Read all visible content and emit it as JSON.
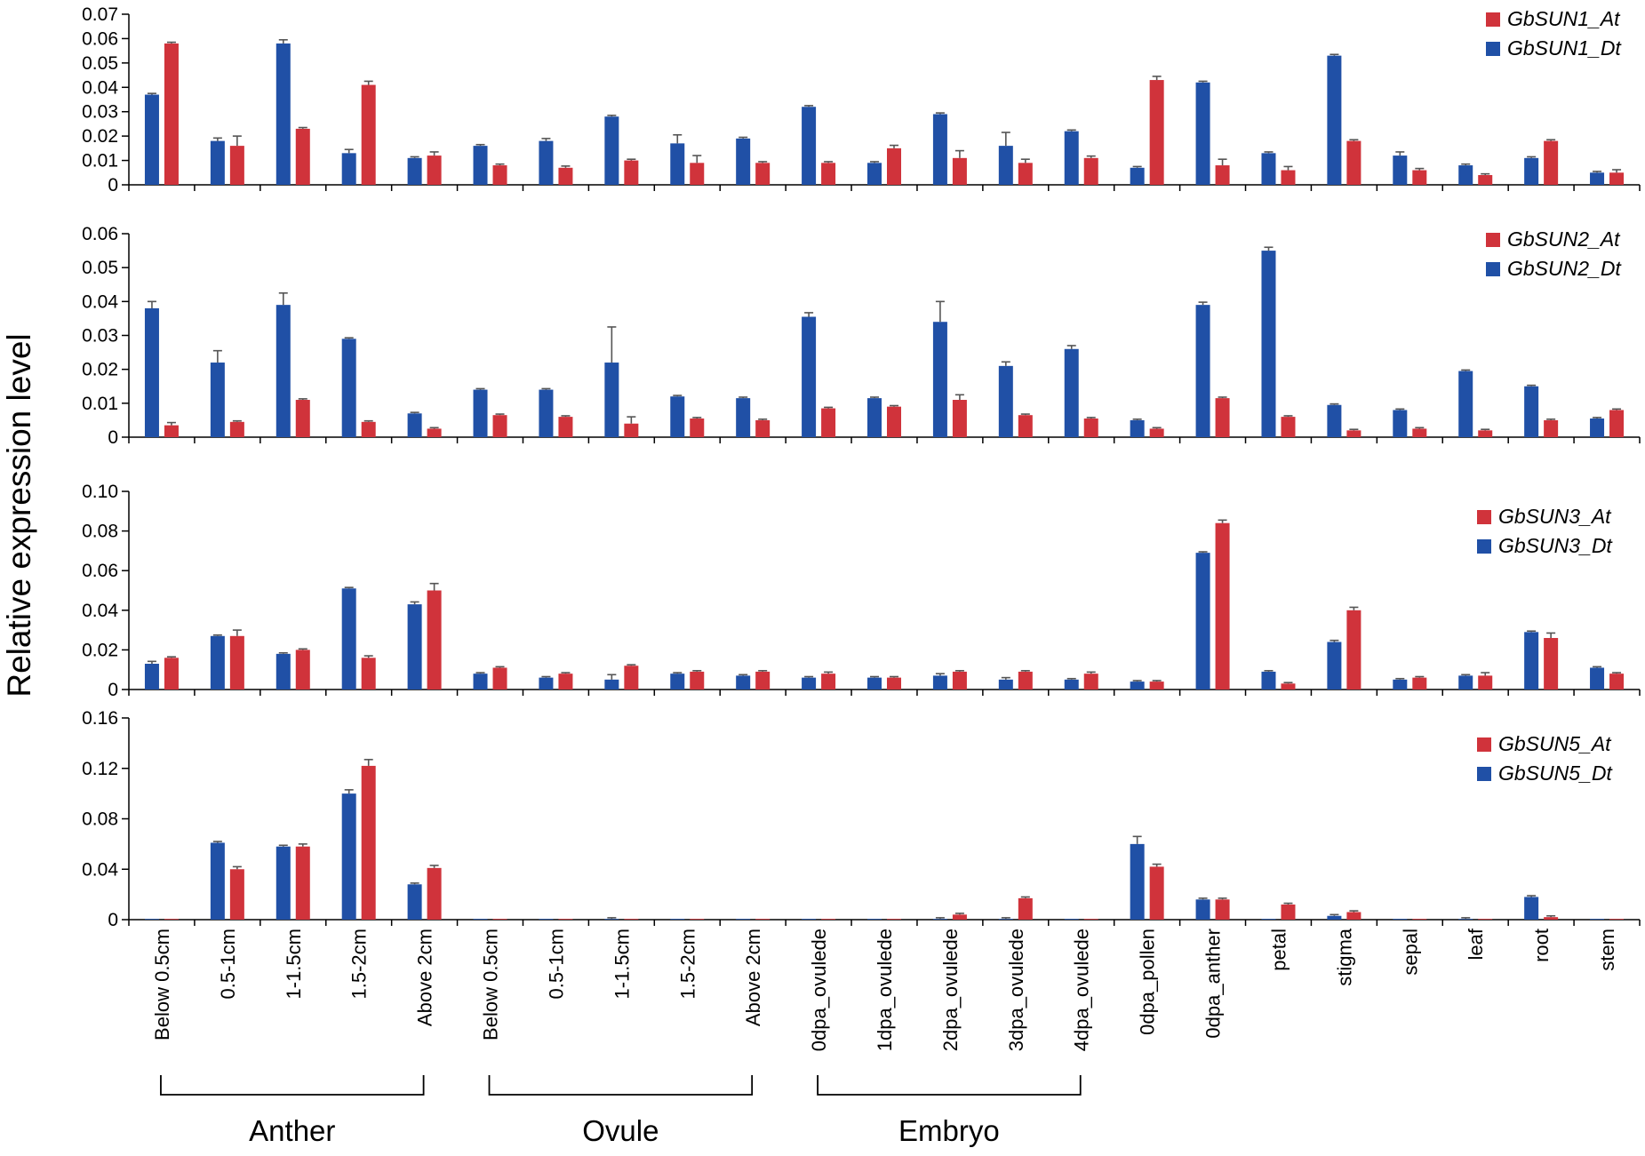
{
  "y_axis_title": "Relative expression level",
  "chart_data": {
    "type": "bar",
    "categories": [
      "Below 0.5cm",
      "0.5-1cm",
      "1-1.5cm",
      "1.5-2cm",
      "Above 2cm",
      "Below 0.5cm",
      "0.5-1cm",
      "1-1.5cm",
      "1.5-2cm",
      "Above 2cm",
      "0dpa_ovulede",
      "1dpa_ovulede",
      "2dpa_ovulede",
      "3dpa_ovulede",
      "4dpa_ovulede",
      "0dpa_pollen",
      "0dpa_anther",
      "petal",
      "stigma",
      "sepal",
      "leaf",
      "root",
      "stem"
    ],
    "groups": [
      {
        "label": "Anther",
        "first": 0,
        "last": 4
      },
      {
        "label": "Ovule",
        "first": 5,
        "last": 9
      },
      {
        "label": "Embryo",
        "first": 10,
        "last": 14
      }
    ],
    "colors": {
      "Dt": "#2050a6",
      "At": "#d0333b",
      "error": "#555555"
    },
    "panels": [
      {
        "ylim": [
          0,
          0.07
        ],
        "yticks": [
          "0",
          "0.01",
          "0.02",
          "0.03",
          "0.04",
          "0.05",
          "0.06",
          "0.07"
        ],
        "series": [
          {
            "name": "GbSUN1_At",
            "key": "At",
            "values": [
              0.058,
              0.016,
              0.023,
              0.041,
              0.012,
              0.008,
              0.007,
              0.01,
              0.009,
              0.009,
              0.009,
              0.015,
              0.011,
              0.009,
              0.011,
              0.043,
              0.008,
              0.006,
              0.018,
              0.006,
              0.004,
              0.018,
              0.005
            ],
            "errors": [
              0.0005,
              0.004,
              0.0005,
              0.0015,
              0.0015,
              0.0005,
              0.0007,
              0.0005,
              0.003,
              0.0005,
              0.0005,
              0.0012,
              0.003,
              0.0015,
              0.0008,
              0.0015,
              0.0025,
              0.0015,
              0.0005,
              0.0007,
              0.0005,
              0.0005,
              0.0012
            ]
          },
          {
            "name": "GbSUN1_Dt",
            "key": "Dt",
            "values": [
              0.037,
              0.018,
              0.058,
              0.013,
              0.011,
              0.016,
              0.018,
              0.028,
              0.017,
              0.019,
              0.032,
              0.009,
              0.029,
              0.016,
              0.022,
              0.007,
              0.042,
              0.013,
              0.053,
              0.012,
              0.008,
              0.011,
              0.005
            ],
            "errors": [
              0.0005,
              0.0012,
              0.0015,
              0.0015,
              0.0005,
              0.0005,
              0.001,
              0.0005,
              0.0035,
              0.0005,
              0.0005,
              0.0005,
              0.0005,
              0.0055,
              0.0005,
              0.0005,
              0.0005,
              0.0005,
              0.0005,
              0.0015,
              0.0005,
              0.0005,
              0.0005
            ]
          }
        ]
      },
      {
        "ylim": [
          0,
          0.06
        ],
        "yticks": [
          "0",
          "0.01",
          "0.02",
          "0.03",
          "0.04",
          "0.05",
          "0.06"
        ],
        "series": [
          {
            "name": "GbSUN2_At",
            "key": "At",
            "values": [
              0.0035,
              0.0045,
              0.011,
              0.0045,
              0.0025,
              0.0065,
              0.006,
              0.004,
              0.0055,
              0.005,
              0.0085,
              0.009,
              0.011,
              0.0065,
              0.0055,
              0.0025,
              0.0115,
              0.006,
              0.002,
              0.0025,
              0.002,
              0.005,
              0.008
            ],
            "errors": [
              0.0008,
              0.0003,
              0.0003,
              0.0003,
              0.0003,
              0.0003,
              0.0003,
              0.002,
              0.0003,
              0.0003,
              0.0003,
              0.0003,
              0.0015,
              0.0003,
              0.0003,
              0.0003,
              0.0003,
              0.0003,
              0.0003,
              0.0003,
              0.0003,
              0.0003,
              0.0003
            ]
          },
          {
            "name": "GbSUN2_Dt",
            "key": "Dt",
            "values": [
              0.038,
              0.022,
              0.039,
              0.029,
              0.007,
              0.014,
              0.014,
              0.022,
              0.012,
              0.0115,
              0.0355,
              0.0115,
              0.034,
              0.021,
              0.026,
              0.005,
              0.039,
              0.055,
              0.0095,
              0.008,
              0.0195,
              0.015,
              0.0055
            ],
            "errors": [
              0.002,
              0.0035,
              0.0035,
              0.0003,
              0.0003,
              0.0003,
              0.0003,
              0.0105,
              0.0003,
              0.0003,
              0.0012,
              0.0003,
              0.006,
              0.0012,
              0.001,
              0.0003,
              0.0008,
              0.001,
              0.0003,
              0.0003,
              0.0003,
              0.0003,
              0.0003
            ]
          }
        ]
      },
      {
        "ylim": [
          0,
          0.1
        ],
        "yticks": [
          "0",
          "0.02",
          "0.04",
          "0.06",
          "0.08",
          "0.10"
        ],
        "series": [
          {
            "name": "GbSUN3_At",
            "key": "At",
            "values": [
              0.016,
              0.027,
              0.02,
              0.016,
              0.05,
              0.011,
              0.008,
              0.012,
              0.009,
              0.009,
              0.008,
              0.006,
              0.009,
              0.009,
              0.008,
              0.004,
              0.084,
              0.003,
              0.04,
              0.006,
              0.007,
              0.026,
              0.008
            ],
            "errors": [
              0.0005,
              0.003,
              0.0005,
              0.001,
              0.0035,
              0.0005,
              0.0005,
              0.0005,
              0.0005,
              0.0005,
              0.0008,
              0.0005,
              0.0005,
              0.0005,
              0.0008,
              0.0005,
              0.0015,
              0.0005,
              0.0015,
              0.0005,
              0.0015,
              0.0025,
              0.0005
            ]
          },
          {
            "name": "GbSUN3_Dt",
            "key": "Dt",
            "values": [
              0.013,
              0.027,
              0.018,
              0.051,
              0.043,
              0.008,
              0.006,
              0.005,
              0.008,
              0.007,
              0.006,
              0.006,
              0.007,
              0.005,
              0.005,
              0.004,
              0.069,
              0.009,
              0.024,
              0.005,
              0.007,
              0.029,
              0.011
            ],
            "errors": [
              0.0012,
              0.0005,
              0.0005,
              0.0005,
              0.0012,
              0.0005,
              0.0005,
              0.0025,
              0.0005,
              0.0005,
              0.0005,
              0.0005,
              0.001,
              0.001,
              0.0005,
              0.0005,
              0.0005,
              0.0005,
              0.0008,
              0.0005,
              0.0005,
              0.0005,
              0.0005
            ]
          }
        ]
      },
      {
        "ylim": [
          0,
          0.16
        ],
        "yticks": [
          "0",
          "0.04",
          "0.08",
          "0.12",
          "0.16"
        ],
        "series": [
          {
            "name": "GbSUN5_At",
            "key": "At",
            "values": [
              0.0005,
              0.04,
              0.058,
              0.122,
              0.041,
              0.0005,
              0.0005,
              0.0005,
              0.0005,
              0.0005,
              0.0005,
              0.0005,
              0.004,
              0.017,
              0.0005,
              0.042,
              0.016,
              0.012,
              0.006,
              0.0005,
              0.0005,
              0.002,
              0.0005
            ],
            "errors": [
              0,
              0.002,
              0.002,
              0.005,
              0.002,
              0,
              0,
              0,
              0,
              0,
              0,
              0,
              0.001,
              0.001,
              0,
              0.002,
              0.001,
              0.001,
              0.001,
              0,
              0,
              0.001,
              0
            ]
          },
          {
            "name": "GbSUN5_Dt",
            "key": "Dt",
            "values": [
              0.0005,
              0.061,
              0.058,
              0.1,
              0.028,
              0.0005,
              0.0005,
              0.0005,
              0.0005,
              0.0005,
              0.0005,
              0.0005,
              0.0005,
              0.0005,
              0.0005,
              0.06,
              0.016,
              0.0005,
              0.003,
              0.0005,
              0.0005,
              0.018,
              0.0005
            ],
            "errors": [
              0,
              0.001,
              0.001,
              0.003,
              0.001,
              0,
              0,
              0.001,
              0,
              0,
              0,
              0,
              0.001,
              0.001,
              0,
              0.006,
              0.001,
              0,
              0.001,
              0,
              0.001,
              0.001,
              0
            ]
          }
        ]
      }
    ]
  }
}
